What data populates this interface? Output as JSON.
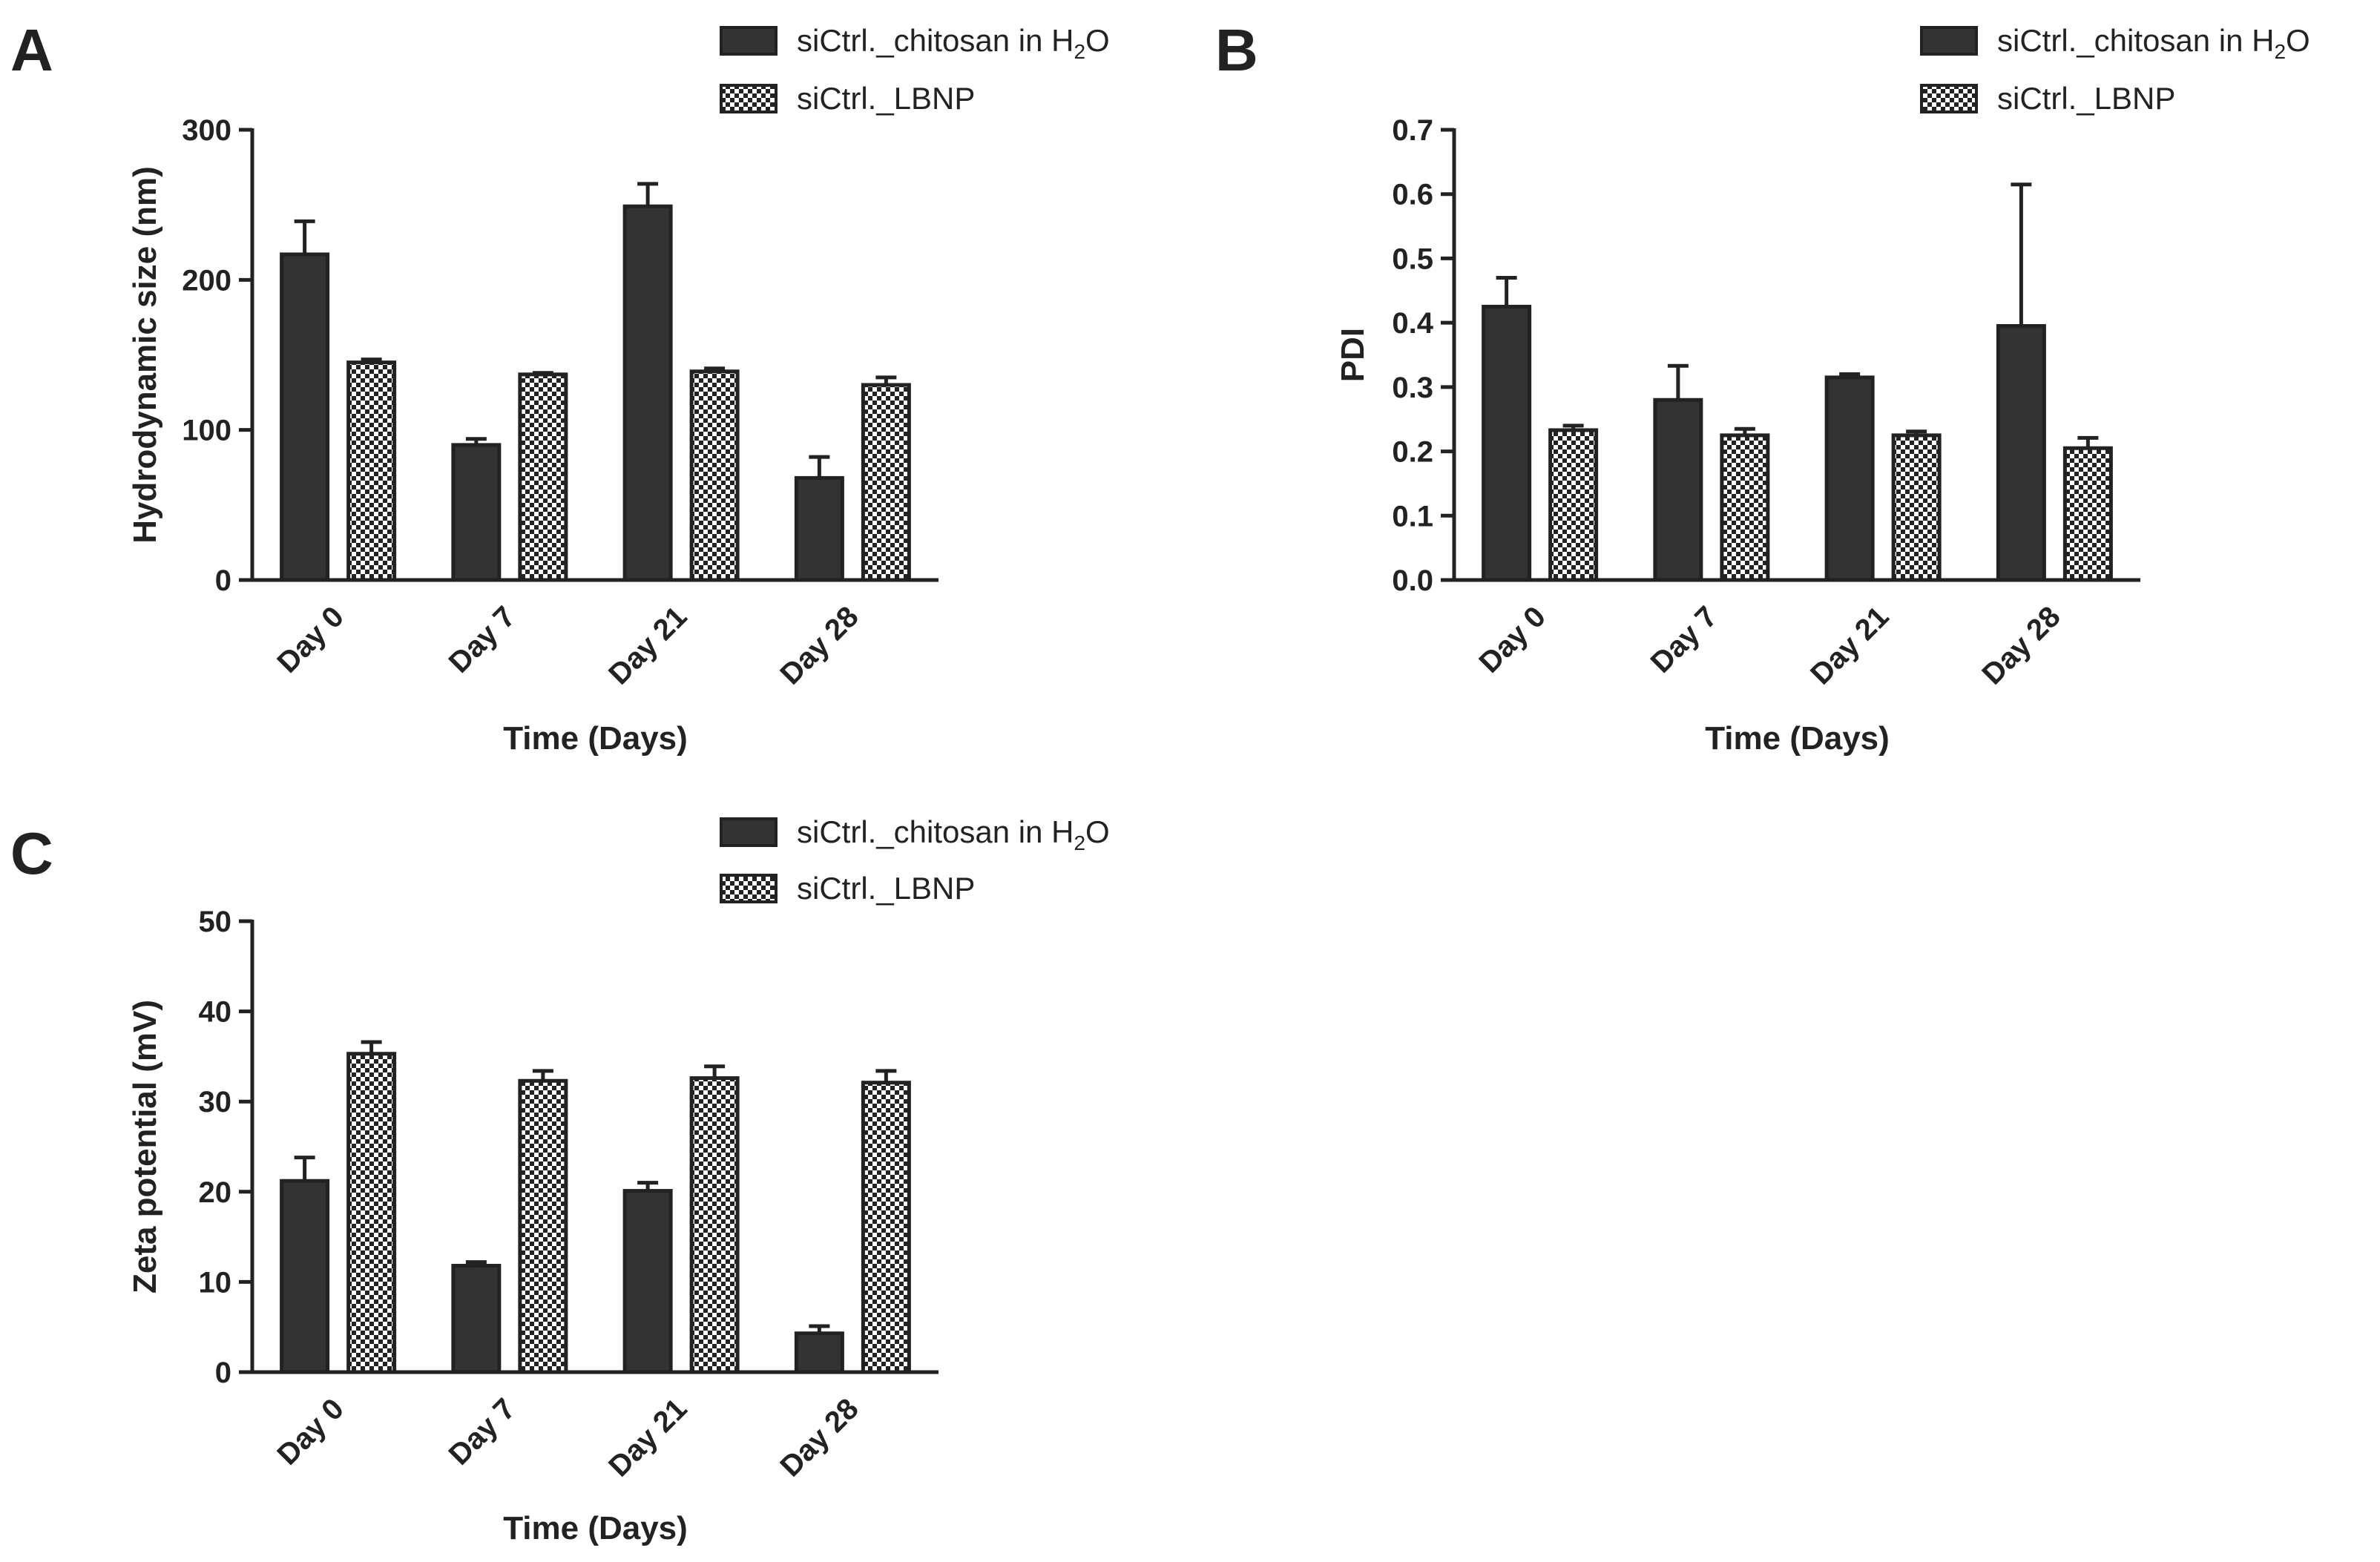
{
  "colors": {
    "solid_bar": "#333333",
    "pattern_dark": "#222222",
    "pattern_light": "#ffffff",
    "axis": "#222222"
  },
  "chart_data": [
    {
      "panel": "A",
      "type": "bar",
      "xlabel": "Time (Days)",
      "ylabel": "Hydrodynamic size (nm)",
      "categories": [
        "Day 0",
        "Day 7",
        "Day 21",
        "Day 28"
      ],
      "ylim": [
        0,
        300
      ],
      "yticks": [
        "0",
        "100",
        "200",
        "300"
      ],
      "legend_position": "top-right",
      "series": [
        {
          "name": "siCtrl._chitosan in H₂O",
          "legend_prefix": "siCtrl._chitosan in H",
          "legend_sub": "2",
          "legend_suffix": "O",
          "fill": "solid",
          "values": [
            217,
            90,
            249,
            68
          ],
          "errors": [
            22,
            4,
            15,
            14
          ]
        },
        {
          "name": "siCtrl._LBNP",
          "legend_prefix": "siCtrl._LBNP",
          "legend_sub": "",
          "legend_suffix": "",
          "fill": "checker",
          "values": [
            145,
            137,
            139,
            130
          ],
          "errors": [
            2,
            1,
            2,
            5
          ]
        }
      ]
    },
    {
      "panel": "B",
      "type": "bar",
      "xlabel": "Time (Days)",
      "ylabel": "PDI",
      "categories": [
        "Day 0",
        "Day 7",
        "Day 21",
        "Day 28"
      ],
      "ylim": [
        0,
        0.7
      ],
      "yticks": [
        "0.0",
        "0.1",
        "0.2",
        "0.3",
        "0.4",
        "0.5",
        "0.6",
        "0.7"
      ],
      "legend_position": "top-right",
      "series": [
        {
          "name": "siCtrl._chitosan in H₂O",
          "legend_prefix": "siCtrl._chitosan in H",
          "legend_sub": "2",
          "legend_suffix": "O",
          "fill": "solid",
          "values": [
            0.425,
            0.28,
            0.315,
            0.395
          ],
          "errors": [
            0.045,
            0.053,
            0.005,
            0.22
          ]
        },
        {
          "name": "siCtrl._LBNP",
          "legend_prefix": "siCtrl._LBNP",
          "legend_sub": "",
          "legend_suffix": "",
          "fill": "checker",
          "values": [
            0.233,
            0.225,
            0.225,
            0.205
          ],
          "errors": [
            0.007,
            0.01,
            0.006,
            0.016
          ]
        }
      ]
    },
    {
      "panel": "C",
      "type": "bar",
      "xlabel": "Time (Days)",
      "ylabel": "Zeta potential (mV)",
      "categories": [
        "Day 0",
        "Day 7",
        "Day 21",
        "Day 28"
      ],
      "ylim": [
        0,
        50
      ],
      "yticks": [
        "0",
        "10",
        "20",
        "30",
        "40",
        "50"
      ],
      "legend_position": "top-right",
      "series": [
        {
          "name": "siCtrl._chitosan in H₂O",
          "legend_prefix": "siCtrl._chitosan in H",
          "legend_sub": "2",
          "legend_suffix": "O",
          "fill": "solid",
          "values": [
            21.2,
            11.8,
            20.1,
            4.3
          ],
          "errors": [
            2.6,
            0.4,
            0.9,
            0.8
          ]
        },
        {
          "name": "siCtrl._LBNP",
          "legend_prefix": "siCtrl._LBNP",
          "legend_sub": "",
          "legend_suffix": "",
          "fill": "checker",
          "values": [
            35.3,
            32.3,
            32.6,
            32.1
          ],
          "errors": [
            1.3,
            1.1,
            1.3,
            1.3
          ]
        }
      ]
    }
  ]
}
